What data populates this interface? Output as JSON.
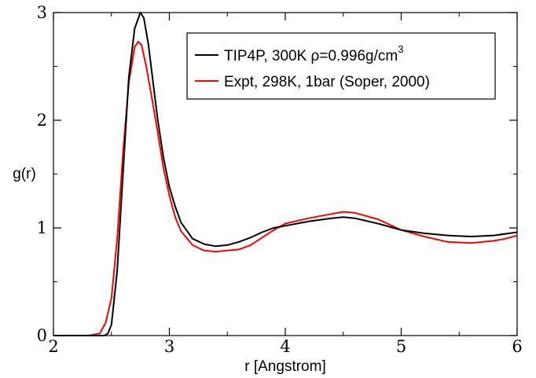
{
  "chart_data": {
    "type": "line",
    "title": "",
    "xlabel": "r [Angstrom]",
    "ylabel": "g(r)",
    "xlim": [
      2,
      6
    ],
    "ylim": [
      0,
      3
    ],
    "x_ticks": [
      2,
      3,
      4,
      5,
      6
    ],
    "y_ticks": [
      0,
      1,
      2,
      3
    ],
    "grid": false,
    "legend_position": "top-right",
    "series": [
      {
        "name": "TIP4P, 300K ρ=0.996g/cm³",
        "name_main": "TIP4P, 300K ρ=0.996g/cm",
        "name_sup": "3",
        "color": "#000000",
        "x": [
          2.0,
          2.3,
          2.44,
          2.47,
          2.5,
          2.55,
          2.6,
          2.65,
          2.7,
          2.75,
          2.78,
          2.82,
          2.86,
          2.9,
          2.95,
          3.0,
          3.05,
          3.1,
          3.2,
          3.3,
          3.4,
          3.5,
          3.6,
          3.7,
          3.8,
          3.9,
          4.0,
          4.2,
          4.4,
          4.5,
          4.6,
          4.8,
          5.0,
          5.2,
          5.4,
          5.6,
          5.8,
          6.0
        ],
        "y": [
          0.0,
          0.0,
          0.0,
          0.02,
          0.1,
          0.6,
          1.5,
          2.4,
          2.85,
          3.0,
          2.95,
          2.7,
          2.35,
          2.0,
          1.65,
          1.38,
          1.2,
          1.05,
          0.9,
          0.85,
          0.83,
          0.84,
          0.87,
          0.91,
          0.96,
          1.0,
          1.02,
          1.06,
          1.09,
          1.1,
          1.09,
          1.04,
          0.98,
          0.95,
          0.93,
          0.92,
          0.93,
          0.96
        ]
      },
      {
        "name": "Expt, 298K, 1bar (Soper, 2000)",
        "color": "#ff0000",
        "x": [
          2.0,
          2.3,
          2.4,
          2.45,
          2.5,
          2.55,
          2.6,
          2.65,
          2.7,
          2.73,
          2.76,
          2.8,
          2.85,
          2.9,
          2.95,
          3.0,
          3.05,
          3.1,
          3.2,
          3.3,
          3.4,
          3.5,
          3.6,
          3.7,
          3.8,
          3.9,
          4.0,
          4.2,
          4.4,
          4.5,
          4.6,
          4.8,
          5.0,
          5.2,
          5.4,
          5.6,
          5.8,
          5.9,
          6.0
        ],
        "y": [
          0.0,
          0.0,
          0.02,
          0.12,
          0.35,
          0.9,
          1.7,
          2.35,
          2.68,
          2.73,
          2.7,
          2.5,
          2.2,
          1.88,
          1.55,
          1.3,
          1.1,
          0.97,
          0.84,
          0.79,
          0.78,
          0.79,
          0.8,
          0.84,
          0.91,
          0.98,
          1.04,
          1.09,
          1.13,
          1.15,
          1.14,
          1.08,
          0.98,
          0.92,
          0.87,
          0.86,
          0.88,
          0.9,
          0.93
        ]
      }
    ]
  }
}
